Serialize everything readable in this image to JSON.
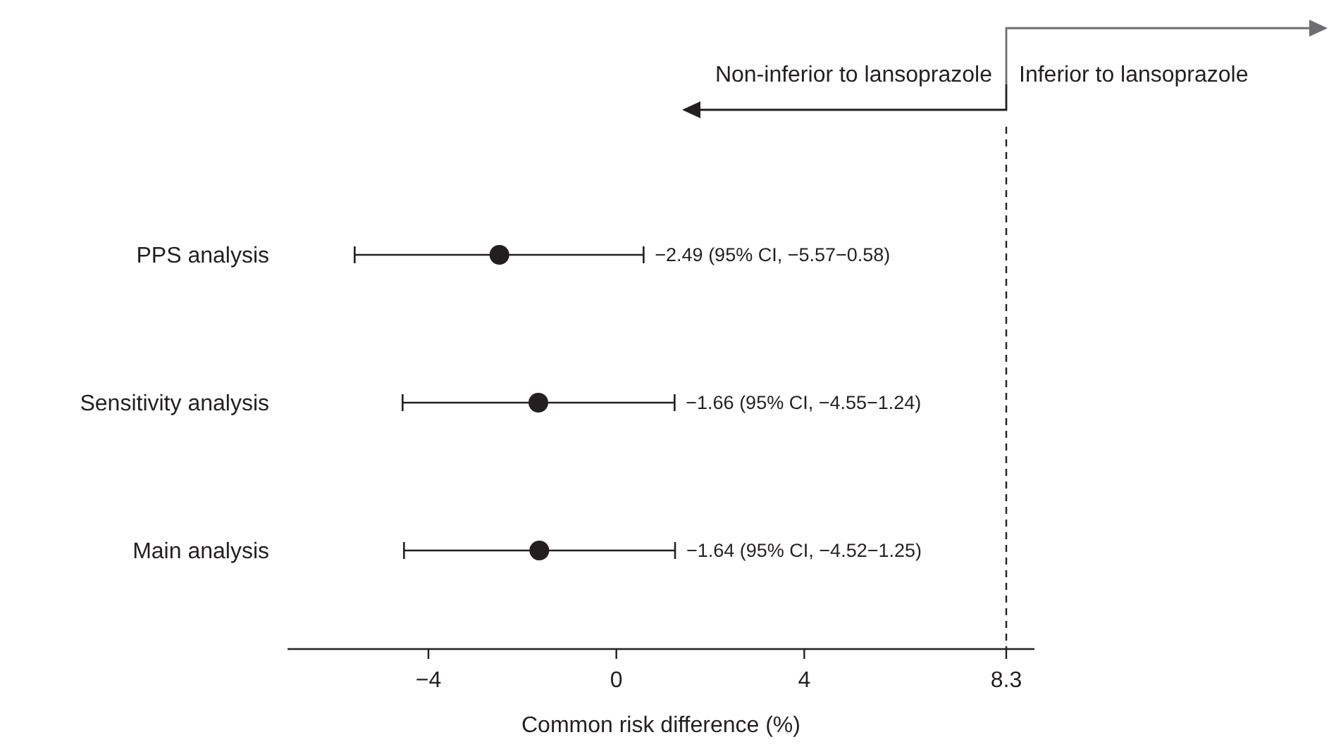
{
  "chart_data": {
    "type": "scatter",
    "orientation": "horizontal",
    "categories": [
      "PPS analysis",
      "Sensitivity analysis",
      "Main analysis"
    ],
    "values": [
      -2.49,
      -1.66,
      -1.64
    ],
    "errors": [
      [
        -5.57,
        0.58
      ],
      [
        -4.55,
        1.24
      ],
      [
        -4.52,
        1.25
      ]
    ],
    "color": "#231f20",
    "marker": "circle",
    "xlabel": "Common risk difference (%)",
    "xlim": [
      -7,
      8.9
    ],
    "xticks": [
      {
        "value": -4,
        "label": "−4"
      },
      0,
      4,
      8.3
    ],
    "ref_lines": [
      {
        "axis": "x",
        "value": 8.3,
        "line_style": "dashed",
        "color": "#231f20"
      }
    ],
    "annotations": [
      "Non-inferior to lansoprazole",
      "Inferior to lansoprazole",
      {
        "text": "−2.49 (95% CI, −5.57−0.58)",
        "x": 0.58,
        "y": "PPS analysis"
      },
      {
        "text": "−1.66 (95% CI, −4.55−1.24)",
        "x": 1.24,
        "y": "Sensitivity analysis"
      },
      {
        "text": "−1.64 (95% CI, −4.52−1.25)",
        "x": 1.25,
        "y": "Main analysis"
      }
    ],
    "grid": false
  }
}
